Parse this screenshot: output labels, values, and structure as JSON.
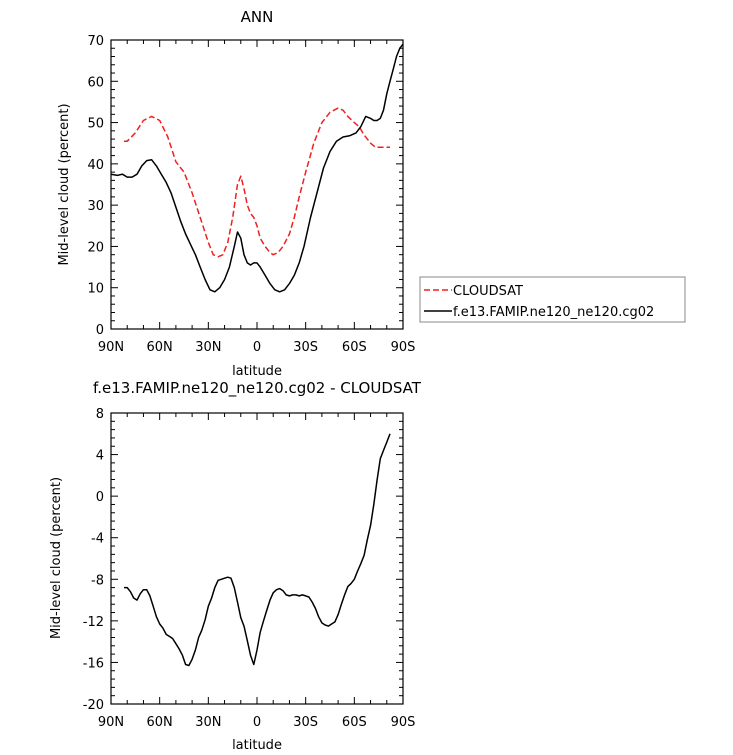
{
  "chart_data": [
    {
      "type": "line",
      "title": "ANN",
      "xlabel": "latitude",
      "ylabel": "Mid-level cloud (percent)",
      "xlim": [
        90,
        -90
      ],
      "ylim": [
        0,
        70
      ],
      "xticks": [
        {
          "value": 90,
          "label": "90N"
        },
        {
          "value": 60,
          "label": "60N"
        },
        {
          "value": 30,
          "label": "30N"
        },
        {
          "value": 0,
          "label": "0"
        },
        {
          "value": -30,
          "label": "30S"
        },
        {
          "value": -60,
          "label": "60S"
        },
        {
          "value": -90,
          "label": "90S"
        }
      ],
      "yticks": [
        0,
        10,
        20,
        30,
        40,
        50,
        60,
        70
      ],
      "legend_placement": "right",
      "series": [
        {
          "name": "CLOUDSAT",
          "color": "#ee2020",
          "style": "dashed",
          "x": [
            82,
            80,
            75,
            70,
            65,
            60,
            55,
            50,
            45,
            40,
            35,
            30,
            27,
            24,
            21,
            18,
            15,
            12,
            10,
            8,
            6,
            4,
            2,
            0,
            -2,
            -5,
            -8,
            -10,
            -13,
            -16,
            -20,
            -23,
            -26,
            -30,
            -35,
            -40,
            -45,
            -50,
            -53,
            -56,
            -60,
            -63,
            -66,
            -70,
            -73,
            -76,
            -80,
            -82
          ],
          "y": [
            45.5,
            45.5,
            47.5,
            50.5,
            51.5,
            50.5,
            46.5,
            40.5,
            38,
            33,
            27,
            21,
            18,
            17.5,
            18,
            21,
            27,
            35,
            37,
            34,
            30,
            28,
            27,
            25,
            22,
            20,
            18.5,
            18,
            18.5,
            20,
            23,
            27,
            32,
            38,
            45,
            50,
            52.5,
            53.5,
            53,
            51.5,
            50,
            49,
            47,
            45,
            44,
            44,
            44,
            44
          ]
        },
        {
          "name": "f.e13.FAMIP.ne120_ne120.cg02",
          "color": "#000000",
          "style": "solid",
          "x": [
            90,
            86,
            83,
            80,
            77,
            74,
            71,
            68,
            65,
            62,
            59,
            56,
            53,
            50,
            47,
            44,
            41,
            38,
            35,
            32,
            29,
            26,
            23,
            20,
            17,
            14,
            12,
            10,
            8,
            6,
            4,
            2,
            0,
            -2,
            -5,
            -8,
            -11,
            -14,
            -17,
            -20,
            -23,
            -26,
            -29,
            -33,
            -37,
            -41,
            -45,
            -49,
            -53,
            -57,
            -61,
            -64,
            -67,
            -70,
            -72,
            -74,
            -76,
            -78,
            -80,
            -82,
            -84,
            -86,
            -88,
            -90
          ],
          "y": [
            37.5,
            37.2,
            37.5,
            36.8,
            36.8,
            37.5,
            39.5,
            40.8,
            41,
            39.5,
            37.5,
            35.5,
            33,
            29.5,
            26,
            23,
            20.5,
            18,
            15,
            12,
            9.5,
            9,
            10,
            12,
            15,
            20,
            23.5,
            22,
            18,
            16,
            15.5,
            16,
            16,
            15,
            13,
            11,
            9.5,
            9,
            9.5,
            11,
            13,
            16,
            20,
            27,
            33,
            39,
            43,
            45.5,
            46.5,
            46.8,
            47.5,
            49,
            51.5,
            51,
            50.5,
            50.5,
            51,
            53,
            57,
            60,
            63,
            66,
            68,
            69
          ]
        }
      ]
    },
    {
      "type": "line",
      "title": "f.e13.FAMIP.ne120_ne120.cg02 - CLOUDSAT",
      "xlabel": "latitude",
      "ylabel": "Mid-level cloud (percent)",
      "xlim": [
        90,
        -90
      ],
      "ylim": [
        -20,
        8
      ],
      "xticks": [
        {
          "value": 90,
          "label": "90N"
        },
        {
          "value": 60,
          "label": "60N"
        },
        {
          "value": 30,
          "label": "30N"
        },
        {
          "value": 0,
          "label": "0"
        },
        {
          "value": -30,
          "label": "30S"
        },
        {
          "value": -60,
          "label": "60S"
        },
        {
          "value": -90,
          "label": "90S"
        }
      ],
      "yticks": [
        -20,
        -16,
        -12,
        -8,
        -4,
        0,
        4,
        8
      ],
      "series": [
        {
          "color": "#000000",
          "style": "solid",
          "x": [
            82,
            80,
            78,
            76,
            74,
            72,
            70,
            68,
            66,
            64,
            62,
            60,
            58,
            56,
            54,
            52,
            50,
            48,
            46,
            44,
            42,
            40,
            38,
            36,
            34,
            32,
            30,
            28,
            26,
            24,
            22,
            20,
            18,
            16,
            14,
            12,
            10,
            8,
            6,
            4,
            2,
            0,
            -2,
            -4,
            -6,
            -8,
            -10,
            -12,
            -14,
            -16,
            -18,
            -20,
            -22,
            -24,
            -26,
            -28,
            -30,
            -32,
            -34,
            -36,
            -38,
            -40,
            -42,
            -44,
            -46,
            -48,
            -50,
            -52,
            -54,
            -56,
            -58,
            -60,
            -62,
            -64,
            -66,
            -68,
            -70,
            -72,
            -74,
            -76,
            -78,
            -80,
            -82
          ],
          "y": [
            -8.8,
            -8.8,
            -9.2,
            -9.8,
            -10,
            -9.4,
            -9,
            -9,
            -9.6,
            -10.6,
            -11.6,
            -12.3,
            -12.7,
            -13.3,
            -13.5,
            -13.7,
            -14.2,
            -14.7,
            -15.3,
            -16.2,
            -16.3,
            -15.7,
            -14.8,
            -13.6,
            -12.9,
            -11.9,
            -10.6,
            -9.8,
            -8.8,
            -8.1,
            -8,
            -7.9,
            -7.8,
            -7.9,
            -8.8,
            -10.2,
            -11.7,
            -12.5,
            -13.9,
            -15.3,
            -16.2,
            -14.8,
            -13.1,
            -12,
            -11,
            -10,
            -9.3,
            -9,
            -8.9,
            -9.1,
            -9.5,
            -9.6,
            -9.5,
            -9.5,
            -9.6,
            -9.5,
            -9.6,
            -9.7,
            -10.2,
            -10.8,
            -11.6,
            -12.2,
            -12.4,
            -12.5,
            -12.3,
            -12.1,
            -11.4,
            -10.4,
            -9.5,
            -8.7,
            -8.4,
            -8,
            -7.2,
            -6.5,
            -5.7,
            -4.2,
            -2.8,
            -0.8,
            1.5,
            3.6,
            4.4,
            5.2,
            6
          ]
        }
      ]
    }
  ]
}
